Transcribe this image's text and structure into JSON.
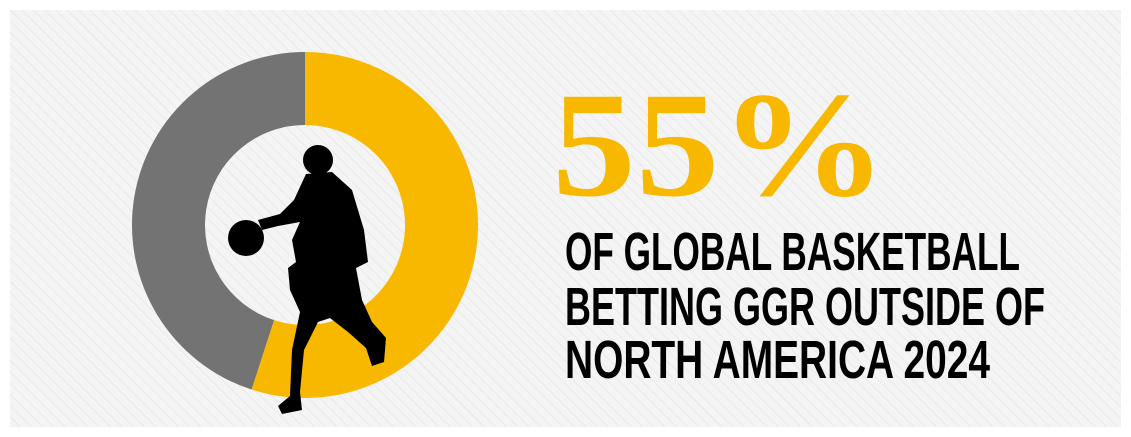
{
  "chart_data": {
    "type": "donut",
    "headline": "55%",
    "caption": [
      "OF GLOBAL BASKETBALL",
      "BETTING GGR OUTSIDE OF",
      "NORTH AMERICA 2024"
    ],
    "values": [
      55,
      45
    ],
    "colors": [
      "#f8b800",
      "#737373"
    ]
  }
}
